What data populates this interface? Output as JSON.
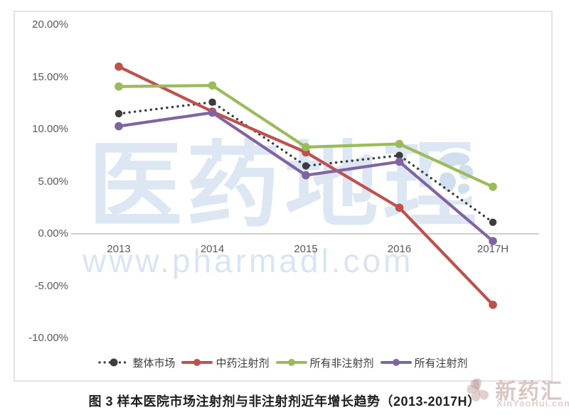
{
  "caption": "图 3  样本医院市场注射剂与非注射剂近年增长趋势（2013-2017H）",
  "watermarks": {
    "brand": "医药地理",
    "url": "www.pharmadl.com",
    "corner_title": "新药汇",
    "corner_sub": "XinYaoHui.com"
  },
  "colors": {
    "overall_market": "#3d3d3d",
    "tcm_injection": "#c0504d",
    "non_injection": "#9bbb59",
    "all_injection": "#8064a2",
    "axis_text": "#595959",
    "axis_line": "#bfbfbf",
    "frame_border": "#e3e3e3",
    "watermark_blue": "#dce7f3",
    "watermark_corner": "#ba9990"
  },
  "chart_data": {
    "type": "line",
    "title": "样本医院市场注射剂与非注射剂近年增长趋势（2013-2017H）",
    "categories": [
      "2013",
      "2014",
      "2015",
      "2016",
      "2017H"
    ],
    "series": [
      {
        "name": "整体市场",
        "style": "dotted",
        "color": "#3d3d3d",
        "values": [
          11.5,
          12.6,
          6.5,
          7.5,
          1.1
        ]
      },
      {
        "name": "中药注射剂",
        "style": "solid",
        "color": "#c0504d",
        "values": [
          16.0,
          11.7,
          7.8,
          2.5,
          -6.8
        ]
      },
      {
        "name": "所有非注射剂",
        "style": "solid",
        "color": "#9bbb59",
        "values": [
          14.1,
          14.2,
          8.3,
          8.6,
          4.5
        ]
      },
      {
        "name": "所有注射剂",
        "style": "solid",
        "color": "#8064a2",
        "values": [
          10.3,
          11.6,
          5.6,
          6.9,
          -0.7
        ]
      }
    ],
    "xlabel": "",
    "ylabel": "",
    "ylim": [
      -10,
      20
    ],
    "ytick_step": 5,
    "ytick_labels": [
      "20.00%",
      "15.00%",
      "10.00%",
      "5.00%",
      "0.00%",
      "-5.00%",
      "-10.00%"
    ],
    "grid": false,
    "legend_position": "bottom",
    "legend": [
      "整体市场",
      "中药注射剂",
      "所有非注射剂",
      "所有注射剂"
    ]
  }
}
